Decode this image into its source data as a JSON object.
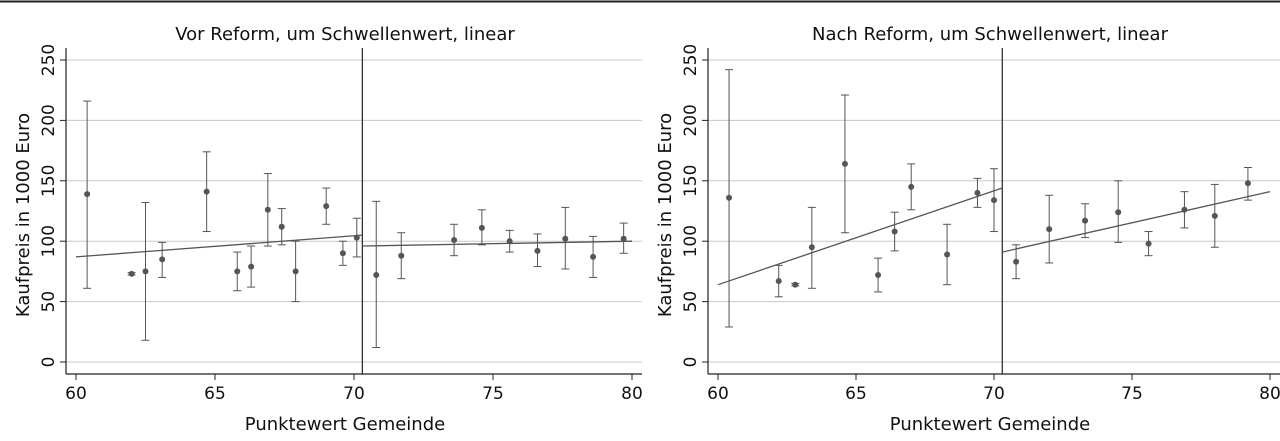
{
  "chart_data": [
    {
      "type": "scatter",
      "title": "Vor Reform, um Schwellenwert, linear",
      "xlabel": "Punktewert Gemeinde",
      "ylabel": "Kaufpreis in 1000 Euro",
      "xlim": [
        60,
        80
      ],
      "ylim": [
        0,
        250
      ],
      "xticks": [
        60,
        65,
        70,
        75,
        80
      ],
      "yticks": [
        0,
        50,
        100,
        150,
        200,
        250
      ],
      "grid": true,
      "threshold": 70.3,
      "points": [
        {
          "x": 60.4,
          "y": 139,
          "lo": 61,
          "hi": 216
        },
        {
          "x": 62.0,
          "y": 73,
          "lo": 72,
          "hi": 74
        },
        {
          "x": 62.5,
          "y": 75,
          "lo": 18,
          "hi": 132
        },
        {
          "x": 63.1,
          "y": 85,
          "lo": 70,
          "hi": 99
        },
        {
          "x": 64.7,
          "y": 141,
          "lo": 108,
          "hi": 174
        },
        {
          "x": 65.8,
          "y": 75,
          "lo": 59,
          "hi": 91
        },
        {
          "x": 66.3,
          "y": 79,
          "lo": 62,
          "hi": 96
        },
        {
          "x": 66.9,
          "y": 126,
          "lo": 96,
          "hi": 156
        },
        {
          "x": 67.4,
          "y": 112,
          "lo": 97,
          "hi": 127
        },
        {
          "x": 67.9,
          "y": 75,
          "lo": 50,
          "hi": 100
        },
        {
          "x": 69.0,
          "y": 129,
          "lo": 114,
          "hi": 144
        },
        {
          "x": 69.6,
          "y": 90,
          "lo": 80,
          "hi": 100
        },
        {
          "x": 70.1,
          "y": 103,
          "lo": 87,
          "hi": 119
        },
        {
          "x": 70.8,
          "y": 72,
          "lo": 12,
          "hi": 133
        },
        {
          "x": 71.7,
          "y": 88,
          "lo": 69,
          "hi": 107
        },
        {
          "x": 73.6,
          "y": 101,
          "lo": 88,
          "hi": 114
        },
        {
          "x": 74.6,
          "y": 111,
          "lo": 97,
          "hi": 126
        },
        {
          "x": 75.6,
          "y": 100,
          "lo": 91,
          "hi": 109
        },
        {
          "x": 76.6,
          "y": 92,
          "lo": 79,
          "hi": 106
        },
        {
          "x": 77.6,
          "y": 102,
          "lo": 77,
          "hi": 128
        },
        {
          "x": 78.6,
          "y": 87,
          "lo": 70,
          "hi": 104
        },
        {
          "x": 79.7,
          "y": 102,
          "lo": 90,
          "hi": 115
        }
      ],
      "fit_lines": [
        {
          "x": [
            60,
            70.3
          ],
          "y": [
            87,
            105
          ]
        },
        {
          "x": [
            70.3,
            80
          ],
          "y": [
            96,
            100
          ]
        }
      ]
    },
    {
      "type": "scatter",
      "title": "Nach Reform, um Schwellenwert, linear",
      "xlabel": "Punktewert Gemeinde",
      "ylabel": "Kaufpreis in 1000 Euro",
      "xlim": [
        60,
        80
      ],
      "ylim": [
        0,
        250
      ],
      "xticks": [
        60,
        65,
        70,
        75,
        80
      ],
      "yticks": [
        0,
        50,
        100,
        150,
        200,
        250
      ],
      "grid": true,
      "threshold": 70.3,
      "points": [
        {
          "x": 60.4,
          "y": 136,
          "lo": 29,
          "hi": 242
        },
        {
          "x": 62.2,
          "y": 67,
          "lo": 54,
          "hi": 80
        },
        {
          "x": 62.8,
          "y": 64,
          "lo": 63,
          "hi": 65
        },
        {
          "x": 63.4,
          "y": 95,
          "lo": 61,
          "hi": 128
        },
        {
          "x": 64.6,
          "y": 164,
          "lo": 107,
          "hi": 221
        },
        {
          "x": 65.8,
          "y": 72,
          "lo": 58,
          "hi": 86
        },
        {
          "x": 66.4,
          "y": 108,
          "lo": 92,
          "hi": 124
        },
        {
          "x": 67.0,
          "y": 145,
          "lo": 126,
          "hi": 164
        },
        {
          "x": 68.3,
          "y": 89,
          "lo": 64,
          "hi": 114
        },
        {
          "x": 69.4,
          "y": 140,
          "lo": 128,
          "hi": 152
        },
        {
          "x": 70.0,
          "y": 134,
          "lo": 108,
          "hi": 160
        },
        {
          "x": 70.8,
          "y": 83,
          "lo": 69,
          "hi": 97
        },
        {
          "x": 72.0,
          "y": 110,
          "lo": 82,
          "hi": 138
        },
        {
          "x": 73.3,
          "y": 117,
          "lo": 103,
          "hi": 131
        },
        {
          "x": 74.5,
          "y": 124,
          "lo": 99,
          "hi": 150
        },
        {
          "x": 75.6,
          "y": 98,
          "lo": 88,
          "hi": 108
        },
        {
          "x": 76.9,
          "y": 126,
          "lo": 111,
          "hi": 141
        },
        {
          "x": 78.0,
          "y": 121,
          "lo": 95,
          "hi": 147
        },
        {
          "x": 79.2,
          "y": 148,
          "lo": 134,
          "hi": 161
        }
      ],
      "fit_lines": [
        {
          "x": [
            60,
            70.3
          ],
          "y": [
            64,
            144
          ]
        },
        {
          "x": [
            70.3,
            80
          ],
          "y": [
            91,
            141
          ]
        }
      ]
    }
  ]
}
